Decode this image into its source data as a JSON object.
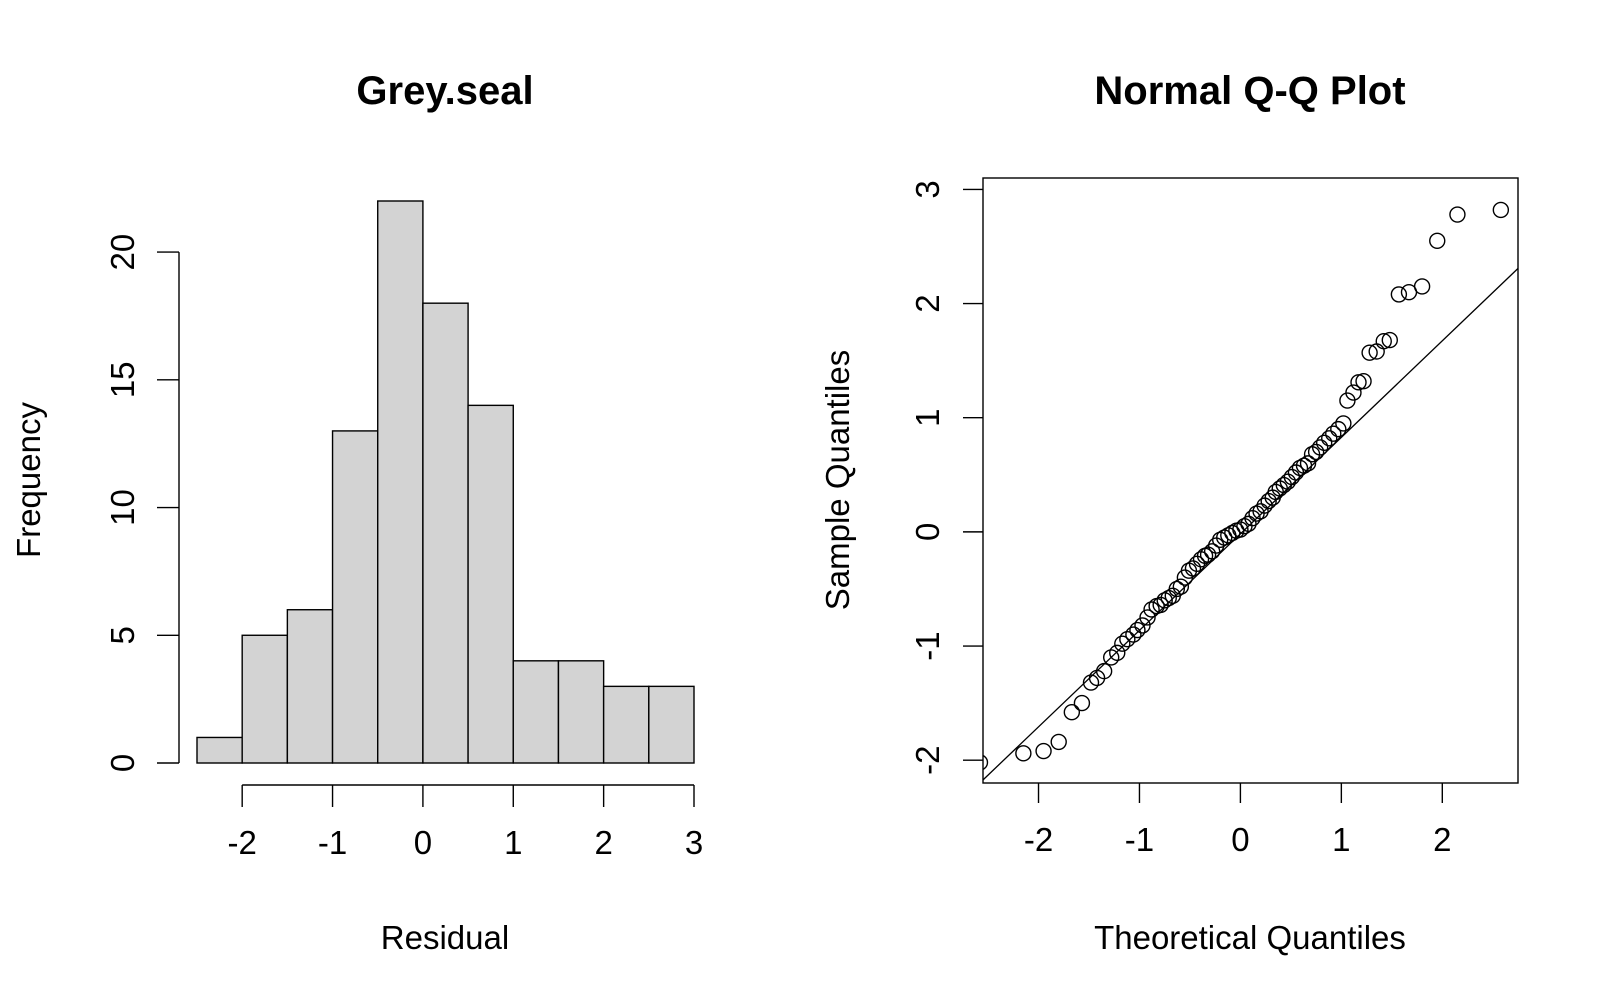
{
  "chart_data": [
    {
      "type": "bar",
      "title": "Grey.seal",
      "xlabel": "Residual",
      "ylabel": "Frequency",
      "bin_edges": [
        -2.5,
        -2,
        -1.5,
        -1,
        -0.5,
        0,
        0.5,
        1,
        1.5,
        2,
        2.5,
        3
      ],
      "values": [
        1,
        5,
        6,
        13,
        22,
        18,
        14,
        4,
        4,
        3,
        3
      ],
      "xticks": [
        -2,
        -1,
        0,
        1,
        2,
        3
      ],
      "yticks": [
        0,
        5,
        10,
        15,
        20
      ],
      "xlim": [
        -2.5,
        3
      ],
      "ylim": [
        0,
        22
      ],
      "grid": false
    },
    {
      "type": "scatter",
      "title": "Normal Q-Q Plot",
      "xlabel": "Theoretical Quantiles",
      "ylabel": "Sample Quantiles",
      "xticks": [
        -2,
        -1,
        0,
        1,
        2
      ],
      "yticks": [
        -2,
        -1,
        0,
        1,
        2,
        3
      ],
      "xlim": [
        -2.55,
        2.75
      ],
      "ylim": [
        -2.2,
        3.1
      ],
      "reference_line": {
        "x1": -2.7,
        "y1": -2.3,
        "x2": 2.8,
        "y2": 2.35
      },
      "points": [
        [
          -2.58,
          -2.02
        ],
        [
          -2.15,
          -1.94
        ],
        [
          -1.95,
          -1.92
        ],
        [
          -1.8,
          -1.84
        ],
        [
          -1.67,
          -1.58
        ],
        [
          -1.57,
          -1.5
        ],
        [
          -1.48,
          -1.32
        ],
        [
          -1.42,
          -1.28
        ],
        [
          -1.35,
          -1.22
        ],
        [
          -1.28,
          -1.1
        ],
        [
          -1.22,
          -1.06
        ],
        [
          -1.17,
          -0.98
        ],
        [
          -1.12,
          -0.94
        ],
        [
          -1.06,
          -0.9
        ],
        [
          -1.02,
          -0.86
        ],
        [
          -0.97,
          -0.82
        ],
        [
          -0.92,
          -0.75
        ],
        [
          -0.88,
          -0.68
        ],
        [
          -0.83,
          -0.65
        ],
        [
          -0.79,
          -0.64
        ],
        [
          -0.75,
          -0.6
        ],
        [
          -0.71,
          -0.58
        ],
        [
          -0.67,
          -0.56
        ],
        [
          -0.63,
          -0.5
        ],
        [
          -0.59,
          -0.48
        ],
        [
          -0.55,
          -0.4
        ],
        [
          -0.51,
          -0.34
        ],
        [
          -0.47,
          -0.32
        ],
        [
          -0.43,
          -0.28
        ],
        [
          -0.39,
          -0.24
        ],
        [
          -0.35,
          -0.21
        ],
        [
          -0.32,
          -0.2
        ],
        [
          -0.28,
          -0.17
        ],
        [
          -0.24,
          -0.12
        ],
        [
          -0.2,
          -0.07
        ],
        [
          -0.16,
          -0.05
        ],
        [
          -0.12,
          -0.03
        ],
        [
          -0.08,
          -0.01
        ],
        [
          -0.04,
          0.01
        ],
        [
          0.0,
          0.02
        ],
        [
          0.04,
          0.05
        ],
        [
          0.08,
          0.07
        ],
        [
          0.12,
          0.12
        ],
        [
          0.16,
          0.16
        ],
        [
          0.2,
          0.18
        ],
        [
          0.24,
          0.23
        ],
        [
          0.28,
          0.27
        ],
        [
          0.32,
          0.3
        ],
        [
          0.35,
          0.35
        ],
        [
          0.39,
          0.38
        ],
        [
          0.43,
          0.41
        ],
        [
          0.47,
          0.44
        ],
        [
          0.51,
          0.48
        ],
        [
          0.55,
          0.52
        ],
        [
          0.59,
          0.56
        ],
        [
          0.63,
          0.58
        ],
        [
          0.67,
          0.6
        ],
        [
          0.71,
          0.68
        ],
        [
          0.75,
          0.7
        ],
        [
          0.79,
          0.74
        ],
        [
          0.83,
          0.78
        ],
        [
          0.88,
          0.82
        ],
        [
          0.92,
          0.86
        ],
        [
          0.97,
          0.9
        ],
        [
          1.02,
          0.95
        ],
        [
          1.06,
          1.15
        ],
        [
          1.12,
          1.22
        ],
        [
          1.17,
          1.31
        ],
        [
          1.22,
          1.32
        ],
        [
          1.28,
          1.57
        ],
        [
          1.35,
          1.58
        ],
        [
          1.42,
          1.67
        ],
        [
          1.48,
          1.68
        ],
        [
          1.57,
          2.08
        ],
        [
          1.67,
          2.1
        ],
        [
          1.8,
          2.15
        ],
        [
          1.95,
          2.55
        ],
        [
          2.15,
          2.78
        ],
        [
          2.58,
          2.82
        ]
      ],
      "grid": false
    }
  ]
}
